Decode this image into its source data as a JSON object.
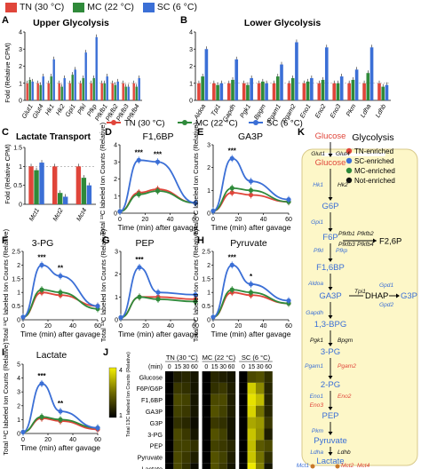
{
  "colors": {
    "TN": "#e0453a",
    "MC": "#2f8a3a",
    "SC": "#3b6fd6",
    "grid": "#999999",
    "pathwayBg": "#fdf7c8",
    "pathwayBorder": "#d8c98a"
  },
  "top_legend": [
    "TN (30 °C)",
    "MC (22 °C)",
    "SC (6 °C)"
  ],
  "mid_legend": [
    "TN (30 °C)",
    "MC (22 °C)",
    "SC (6 °C)"
  ],
  "panels": {
    "A": {
      "letter": "A",
      "title": "Upper Glycolysis",
      "ylabel": "Fold (Relative CPM)"
    },
    "B": {
      "letter": "B",
      "title": "Lower Glycolysis"
    },
    "C": {
      "letter": "C",
      "title": "Lactate Transport",
      "ylabel": "Fold (Relative CPM)"
    },
    "D": {
      "letter": "D",
      "title": "F1,6BP"
    },
    "E": {
      "letter": "E",
      "title": "GA3P"
    },
    "F": {
      "letter": "F",
      "title": "3-PG"
    },
    "G": {
      "letter": "G",
      "title": "PEP"
    },
    "H": {
      "letter": "H",
      "title": "Pyruvate"
    },
    "I": {
      "letter": "I",
      "title": "Lactate"
    },
    "J": {
      "letter": "J",
      "ylabel": "Total 13C labeled Ion Counts (Relative)"
    },
    "K": {
      "letter": "K",
      "title": "Glycolysis"
    }
  },
  "line_ylabel": "Total ¹³C labeled Ion Counts (Relative)",
  "line_xlabel": "Time (min) after gavage",
  "chart_data": [
    {
      "panel": "A",
      "type": "bar",
      "categories": [
        "Glut1",
        "Glut4",
        "Hk1",
        "Hk2",
        "Gpi1",
        "Pfkl",
        "Pfkp",
        "Pfkfb1",
        "Pfkfb2",
        "Pfkfb3",
        "Pfkfb4"
      ],
      "series": [
        {
          "name": "TN (30 °C)",
          "values": [
            1,
            1,
            1,
            1,
            1,
            1,
            1,
            1,
            1,
            1,
            1
          ]
        },
        {
          "name": "MC (22 °C)",
          "values": [
            1.2,
            0.9,
            1.4,
            0.8,
            1.5,
            1.3,
            1.3,
            1.0,
            0.9,
            0.8,
            0.8
          ]
        },
        {
          "name": "SC (6 °C)",
          "values": [
            1.1,
            1.4,
            2.4,
            1.3,
            1.8,
            2.8,
            3.7,
            1.4,
            1.1,
            0.8,
            1.3
          ]
        }
      ],
      "ylim": [
        0,
        4
      ],
      "yticks": [
        0,
        1,
        2,
        3,
        4
      ],
      "grid": false
    },
    {
      "panel": "B",
      "type": "bar",
      "categories": [
        "Aldoa",
        "Tpi1",
        "Gapdh",
        "Pgk1",
        "Bpgm",
        "Pgam1",
        "Pgam2",
        "Eno1",
        "Eno2",
        "Eno3",
        "Pkm",
        "Ldha",
        "Ldhb"
      ],
      "series": [
        {
          "name": "TN (30 °C)",
          "values": [
            1,
            1,
            1,
            1,
            1,
            1,
            1,
            1,
            1,
            1,
            1,
            1,
            1
          ]
        },
        {
          "name": "MC (22 °C)",
          "values": [
            1.4,
            0.9,
            1.2,
            0.9,
            1.1,
            1.4,
            1.3,
            1.1,
            1.2,
            1.0,
            1.2,
            1.6,
            0.8
          ]
        },
        {
          "name": "SC (6 °C)",
          "values": [
            3.0,
            1.0,
            2.4,
            1.3,
            1.0,
            2.1,
            3.4,
            1.3,
            3.1,
            1.4,
            1.8,
            3.1,
            0.9
          ]
        }
      ],
      "ylim": [
        0,
        4
      ],
      "yticks": [
        0,
        1,
        2,
        3,
        4
      ],
      "grid": false
    },
    {
      "panel": "C",
      "type": "bar",
      "categories": [
        "Mct1",
        "Mct2",
        "Mct4"
      ],
      "series": [
        {
          "name": "TN (30 °C)",
          "values": [
            1,
            1,
            1
          ]
        },
        {
          "name": "MC (22 °C)",
          "values": [
            0.9,
            0.3,
            0.7
          ]
        },
        {
          "name": "SC (6 °C)",
          "values": [
            1.1,
            0.2,
            0.5
          ]
        }
      ],
      "ylim": [
        0,
        1.5
      ],
      "yticks": [
        0,
        0.5,
        1.0,
        1.5
      ],
      "grid": false
    },
    {
      "panel": "D",
      "type": "line",
      "x": [
        0,
        15,
        30,
        60
      ],
      "series": [
        {
          "name": "TN (30 °C)",
          "values": [
            0.1,
            1.2,
            1.4,
            0.6
          ]
        },
        {
          "name": "MC (22 °C)",
          "values": [
            0.1,
            1.1,
            1.3,
            0.6
          ]
        },
        {
          "name": "SC (6 °C)",
          "values": [
            0.1,
            3.1,
            3.0,
            0.6
          ]
        }
      ],
      "xlim": [
        0,
        60
      ],
      "xticks": [
        0,
        20,
        40,
        60
      ],
      "ylim": [
        0,
        4
      ],
      "yticks": [
        0,
        1,
        2,
        3,
        4
      ],
      "annotations": [
        "***",
        "***"
      ]
    },
    {
      "panel": "E",
      "type": "line",
      "x": [
        0,
        15,
        30,
        60
      ],
      "series": [
        {
          "name": "TN (30 °C)",
          "values": [
            0.1,
            0.9,
            0.8,
            0.5
          ]
        },
        {
          "name": "MC (22 °C)",
          "values": [
            0.1,
            1.1,
            1.0,
            0.5
          ]
        },
        {
          "name": "SC (6 °C)",
          "values": [
            0.1,
            2.4,
            1.4,
            0.6
          ]
        }
      ],
      "xlim": [
        0,
        60
      ],
      "xticks": [
        0,
        20,
        40,
        60
      ],
      "ylim": [
        0,
        3
      ],
      "yticks": [
        0,
        1,
        2,
        3
      ],
      "annotations": [
        "***"
      ]
    },
    {
      "panel": "F",
      "type": "line",
      "x": [
        0,
        15,
        30,
        60
      ],
      "series": [
        {
          "name": "TN (30 °C)",
          "values": [
            0.1,
            1.0,
            0.9,
            0.5
          ]
        },
        {
          "name": "MC (22 °C)",
          "values": [
            0.1,
            1.1,
            1.0,
            0.4
          ]
        },
        {
          "name": "SC (6 °C)",
          "values": [
            0.1,
            2.0,
            1.6,
            0.5
          ]
        }
      ],
      "xlim": [
        0,
        60
      ],
      "xticks": [
        0,
        20,
        40,
        60
      ],
      "ylim": [
        0,
        2.5
      ],
      "yticks": [
        0,
        0.5,
        1.0,
        1.5,
        2.0,
        2.5
      ],
      "annotations": [
        "***",
        "**"
      ]
    },
    {
      "panel": "G",
      "type": "line",
      "x": [
        0,
        15,
        30,
        60
      ],
      "series": [
        {
          "name": "TN (30 °C)",
          "values": [
            0.1,
            1.0,
            1.0,
            0.9
          ]
        },
        {
          "name": "MC (22 °C)",
          "values": [
            0.1,
            1.0,
            0.9,
            0.8
          ]
        },
        {
          "name": "SC (6 °C)",
          "values": [
            0.1,
            2.3,
            1.2,
            1.1
          ]
        }
      ],
      "xlim": [
        0,
        60
      ],
      "xticks": [
        0,
        20,
        40,
        60
      ],
      "ylim": [
        0,
        3
      ],
      "yticks": [
        0,
        1,
        2,
        3
      ],
      "annotations": [
        "***"
      ]
    },
    {
      "panel": "H",
      "type": "line",
      "x": [
        0,
        15,
        30,
        60
      ],
      "series": [
        {
          "name": "TN (30 °C)",
          "values": [
            0.1,
            1.0,
            0.9,
            0.6
          ]
        },
        {
          "name": "MC (22 °C)",
          "values": [
            0.1,
            1.1,
            1.0,
            0.6
          ]
        },
        {
          "name": "SC (6 °C)",
          "values": [
            0.1,
            2.0,
            1.3,
            0.7
          ]
        }
      ],
      "xlim": [
        0,
        60
      ],
      "xticks": [
        0,
        20,
        40,
        60
      ],
      "ylim": [
        0,
        2.5
      ],
      "yticks": [
        0,
        0.5,
        1.0,
        1.5,
        2.0,
        2.5
      ],
      "annotations": [
        "***",
        "*"
      ]
    },
    {
      "panel": "I",
      "type": "line",
      "x": [
        0,
        15,
        30,
        60
      ],
      "series": [
        {
          "name": "TN (30 °C)",
          "values": [
            0.1,
            1.1,
            0.9,
            0.3
          ]
        },
        {
          "name": "MC (22 °C)",
          "values": [
            0.1,
            1.2,
            1.0,
            0.4
          ]
        },
        {
          "name": "SC (6 °C)",
          "values": [
            0.1,
            3.6,
            1.6,
            0.4
          ]
        }
      ],
      "xlim": [
        0,
        60
      ],
      "xticks": [
        0,
        20,
        40,
        60
      ],
      "ylim": [
        0,
        5
      ],
      "yticks": [
        0,
        1,
        2,
        3,
        4,
        5
      ],
      "annotations": [
        "***",
        "**"
      ]
    },
    {
      "panel": "J",
      "type": "heatmap",
      "groups": [
        "TN (30 °C)",
        "MC (22 °C)",
        "SC (6 °C)"
      ],
      "time_label": "(min)",
      "times": [
        0,
        15,
        30,
        60
      ],
      "rows": [
        "Glucose",
        "F6P/G6P",
        "F1,6BP",
        "GA3P",
        "G3P",
        "3-PG",
        "PEP",
        "Pyruvate",
        "Lactate"
      ],
      "scale": [
        1,
        4
      ],
      "values": [
        [
          [
            1.0,
            1.3,
            1.4,
            1.2
          ],
          [
            1.0,
            1.4,
            1.3,
            1.2
          ],
          [
            1.0,
            1.8,
            1.9,
            1.5
          ]
        ],
        [
          [
            1.0,
            1.6,
            1.5,
            1.2
          ],
          [
            1.0,
            1.5,
            1.6,
            1.3
          ],
          [
            1.0,
            3.5,
            2.6,
            1.4
          ]
        ],
        [
          [
            1.0,
            1.8,
            1.7,
            1.2
          ],
          [
            1.0,
            1.8,
            1.8,
            1.3
          ],
          [
            1.0,
            3.8,
            3.3,
            1.4
          ]
        ],
        [
          [
            1.0,
            1.7,
            1.6,
            1.2
          ],
          [
            1.0,
            1.9,
            1.7,
            1.3
          ],
          [
            1.0,
            3.6,
            2.3,
            1.4
          ]
        ],
        [
          [
            1.0,
            1.5,
            1.4,
            1.1
          ],
          [
            1.0,
            1.6,
            1.5,
            1.2
          ],
          [
            1.0,
            3.0,
            2.8,
            1.6
          ]
        ],
        [
          [
            1.0,
            1.8,
            1.6,
            1.2
          ],
          [
            1.0,
            1.9,
            1.7,
            1.2
          ],
          [
            1.0,
            3.4,
            2.7,
            1.3
          ]
        ],
        [
          [
            1.0,
            1.7,
            1.7,
            1.5
          ],
          [
            1.0,
            1.7,
            1.6,
            1.4
          ],
          [
            1.0,
            3.3,
            2.0,
            1.8
          ]
        ],
        [
          [
            1.0,
            1.8,
            1.6,
            1.3
          ],
          [
            1.0,
            1.9,
            1.7,
            1.3
          ],
          [
            1.0,
            3.4,
            2.3,
            1.5
          ]
        ],
        [
          [
            1.0,
            1.8,
            1.5,
            1.1
          ],
          [
            1.0,
            1.9,
            1.6,
            1.2
          ],
          [
            1.0,
            3.9,
            2.5,
            1.2
          ]
        ]
      ]
    }
  ],
  "pathway": {
    "legend": [
      {
        "label": "TN-enriched",
        "color": "#e0453a"
      },
      {
        "label": "SC-enriched",
        "color": "#3b6fd6"
      },
      {
        "label": "MC-enriched",
        "color": "#2f8a3a"
      },
      {
        "label": "Not-enriched",
        "color": "#111111"
      }
    ],
    "metabolites": [
      "Glucose",
      "Glucose",
      "G6P",
      "F6P",
      "F1,6BP",
      "GA3P",
      "1,3-BPG",
      "3-PG",
      "2-PG",
      "PEP",
      "Pyruvate",
      "Lactate"
    ],
    "side": {
      "f26p": "F2,6P",
      "dhap": "DHAP",
      "g3p": "G3P"
    },
    "enzymes": {
      "glut1": "Glut1",
      "glut4": "Glut4",
      "hk1": "Hk1",
      "hk2": "Hk2",
      "gpi1": "Gpi1",
      "pfkfb1": "Pfkfb1",
      "pfkfb2": "Pfkfb2",
      "pfkfb3": "Pfkfb3",
      "pfkfb4": "Pfkfb4",
      "pfkl": "Pfkl",
      "pfkp": "Pfkp",
      "aldoa": "Aldoa",
      "gpd1": "Gpd1",
      "gpd2": "Gpd2",
      "tpi1": "Tpi1",
      "gapdh": "Gapdh",
      "pgk1": "Pgk1",
      "bpgm": "Bpgm",
      "pgam1": "Pgam1",
      "pgam2": "Pgam2",
      "eno1": "Eno1",
      "eno2": "Eno2",
      "eno3": "Eno3",
      "pkm": "Pkm",
      "ldha": "Ldha",
      "ldhb": "Ldhb",
      "mct1": "Mct1",
      "mct2": "Mct2",
      "mct4": "Mct4"
    }
  }
}
